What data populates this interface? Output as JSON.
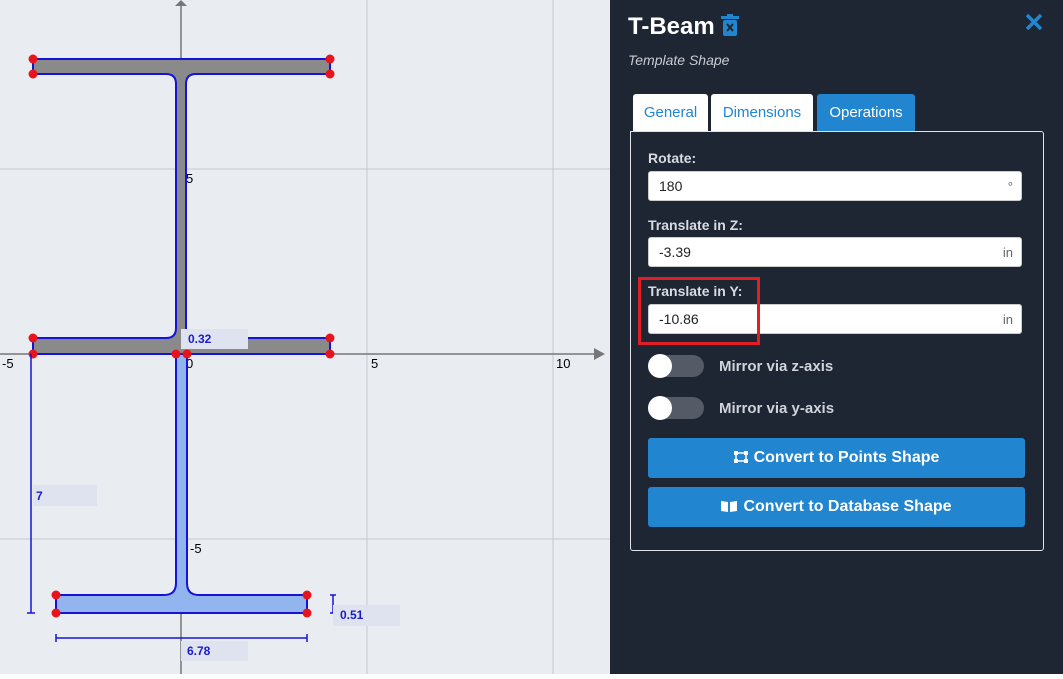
{
  "canvas": {
    "x_tick_labels": [
      "-5",
      "0",
      "5",
      "10"
    ],
    "y_tick_labels": [
      "5",
      "-5"
    ],
    "dimensions": [
      "0.32",
      "7",
      "6.78",
      "0.51"
    ]
  },
  "panel": {
    "title": "T-Beam",
    "subtitle": "Template Shape",
    "tabs": [
      "General",
      "Dimensions",
      "Operations"
    ],
    "fields": [
      {
        "label": "Rotate:",
        "value": "180",
        "unit": "°"
      },
      {
        "label": "Translate in Z:",
        "value": "-3.39",
        "unit": "in"
      },
      {
        "label": "Translate in Y:",
        "value": "-10.86",
        "unit": "in"
      }
    ],
    "toggles": [
      "Mirror via z-axis",
      "Mirror via y-axis"
    ],
    "buttons": [
      "Convert to Points Shape",
      "Convert to Database Shape"
    ]
  }
}
